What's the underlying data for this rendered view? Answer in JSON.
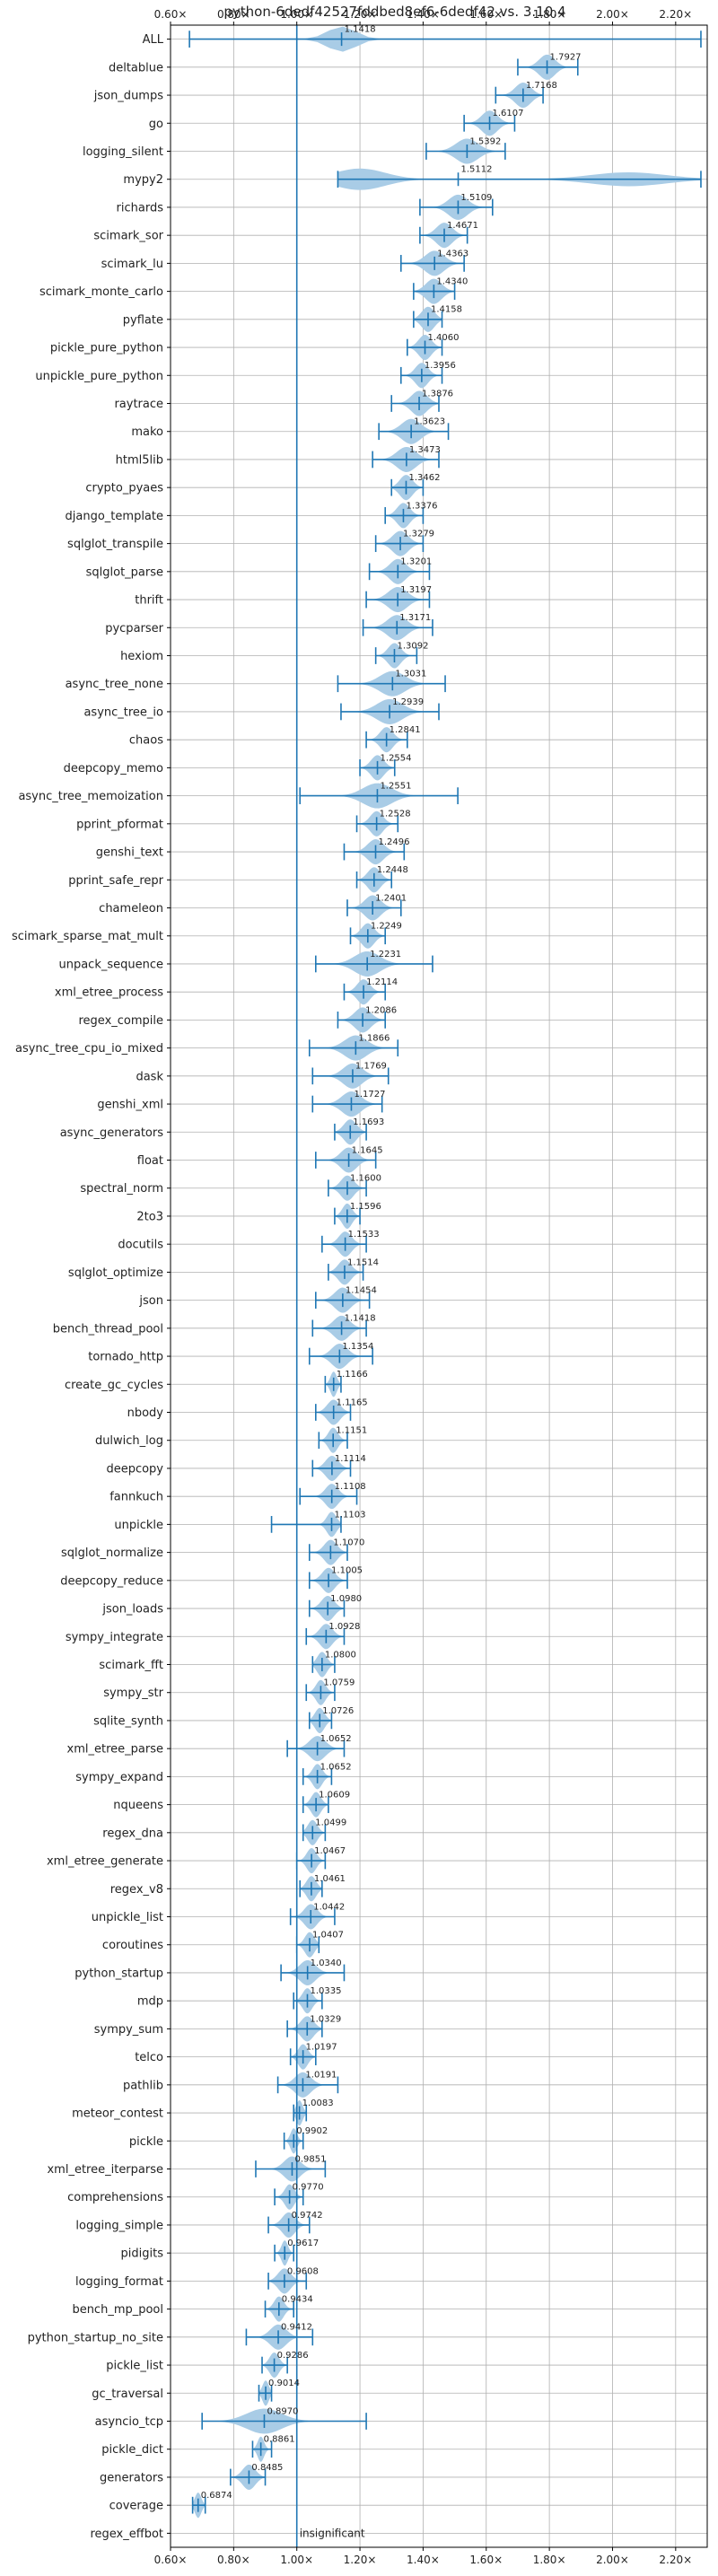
{
  "chart_data": {
    "type": "violin",
    "title": "python-6dedf42527fddbed8ef6-6dedf42 vs. 3.10.4",
    "xlabel": "",
    "ylabel": "",
    "xlim": [
      0.6,
      2.3
    ],
    "x_ticks": [
      0.6,
      0.8,
      1.0,
      1.2,
      1.4,
      1.6,
      1.8,
      2.0,
      2.2
    ],
    "x_tick_labels": [
      "0.60×",
      "0.80×",
      "1.00×",
      "1.20×",
      "1.40×",
      "1.60×",
      "1.80×",
      "2.00×",
      "2.20×"
    ],
    "reference_line": 1.0,
    "grid": true,
    "color": "#1f77b4",
    "fill_color": "#a9cce6",
    "benchmarks": [
      {
        "name": "ALL",
        "value": 1.1418,
        "label": "1.1418",
        "min": 0.66,
        "max": 2.28,
        "spread": 0.09,
        "style": "wide"
      },
      {
        "name": "deltablue",
        "value": 1.7927,
        "label": "1.7927",
        "min": 1.7,
        "max": 1.89,
        "spread": 0.05
      },
      {
        "name": "json_dumps",
        "value": 1.7168,
        "label": "1.7168",
        "min": 1.63,
        "max": 1.78,
        "spread": 0.05
      },
      {
        "name": "go",
        "value": 1.6107,
        "label": "1.6107",
        "min": 1.53,
        "max": 1.69,
        "spread": 0.05
      },
      {
        "name": "logging_silent",
        "value": 1.5392,
        "label": "1.5392",
        "min": 1.41,
        "max": 1.66,
        "spread": 0.07
      },
      {
        "name": "mypy2",
        "value": 1.5112,
        "label": "1.5112",
        "min": 1.13,
        "max": 2.28,
        "spread": 0.2,
        "style": "mypy"
      },
      {
        "name": "richards",
        "value": 1.5109,
        "label": "1.5109",
        "min": 1.39,
        "max": 1.62,
        "spread": 0.06
      },
      {
        "name": "scimark_sor",
        "value": 1.4671,
        "label": "1.4671",
        "min": 1.39,
        "max": 1.54,
        "spread": 0.05
      },
      {
        "name": "scimark_lu",
        "value": 1.4363,
        "label": "1.4363",
        "min": 1.33,
        "max": 1.53,
        "spread": 0.06
      },
      {
        "name": "scimark_monte_carlo",
        "value": 1.434,
        "label": "1.4340",
        "min": 1.37,
        "max": 1.5,
        "spread": 0.05
      },
      {
        "name": "pyflate",
        "value": 1.4158,
        "label": "1.4158",
        "min": 1.37,
        "max": 1.46,
        "spread": 0.04
      },
      {
        "name": "pickle_pure_python",
        "value": 1.406,
        "label": "1.4060",
        "min": 1.35,
        "max": 1.46,
        "spread": 0.04
      },
      {
        "name": "unpickle_pure_python",
        "value": 1.3956,
        "label": "1.3956",
        "min": 1.33,
        "max": 1.46,
        "spread": 0.04
      },
      {
        "name": "raytrace",
        "value": 1.3876,
        "label": "1.3876",
        "min": 1.3,
        "max": 1.45,
        "spread": 0.05
      },
      {
        "name": "mako",
        "value": 1.3623,
        "label": "1.3623",
        "min": 1.26,
        "max": 1.48,
        "spread": 0.06
      },
      {
        "name": "html5lib",
        "value": 1.3473,
        "label": "1.3473",
        "min": 1.24,
        "max": 1.45,
        "spread": 0.06
      },
      {
        "name": "crypto_pyaes",
        "value": 1.3462,
        "label": "1.3462",
        "min": 1.3,
        "max": 1.4,
        "spread": 0.04
      },
      {
        "name": "django_template",
        "value": 1.3376,
        "label": "1.3376",
        "min": 1.28,
        "max": 1.4,
        "spread": 0.04
      },
      {
        "name": "sqlglot_transpile",
        "value": 1.3279,
        "label": "1.3279",
        "min": 1.25,
        "max": 1.4,
        "spread": 0.05
      },
      {
        "name": "sqlglot_parse",
        "value": 1.3201,
        "label": "1.3201",
        "min": 1.23,
        "max": 1.42,
        "spread": 0.05
      },
      {
        "name": "thrift",
        "value": 1.3197,
        "label": "1.3197",
        "min": 1.22,
        "max": 1.42,
        "spread": 0.06
      },
      {
        "name": "pycparser",
        "value": 1.3171,
        "label": "1.3171",
        "min": 1.21,
        "max": 1.43,
        "spread": 0.06
      },
      {
        "name": "hexiom",
        "value": 1.3092,
        "label": "1.3092",
        "min": 1.25,
        "max": 1.38,
        "spread": 0.04
      },
      {
        "name": "async_tree_none",
        "value": 1.3031,
        "label": "1.3031",
        "min": 1.13,
        "max": 1.47,
        "spread": 0.08
      },
      {
        "name": "async_tree_io",
        "value": 1.2939,
        "label": "1.2939",
        "min": 1.14,
        "max": 1.45,
        "spread": 0.08
      },
      {
        "name": "chaos",
        "value": 1.2841,
        "label": "1.2841",
        "min": 1.22,
        "max": 1.35,
        "spread": 0.04
      },
      {
        "name": "deepcopy_memo",
        "value": 1.2554,
        "label": "1.2554",
        "min": 1.2,
        "max": 1.31,
        "spread": 0.04
      },
      {
        "name": "async_tree_memoization",
        "value": 1.2551,
        "label": "1.2551",
        "min": 1.01,
        "max": 1.51,
        "spread": 0.09
      },
      {
        "name": "pprint_pformat",
        "value": 1.2528,
        "label": "1.2528",
        "min": 1.19,
        "max": 1.32,
        "spread": 0.04
      },
      {
        "name": "genshi_text",
        "value": 1.2496,
        "label": "1.2496",
        "min": 1.15,
        "max": 1.34,
        "spread": 0.05
      },
      {
        "name": "pprint_safe_repr",
        "value": 1.2448,
        "label": "1.2448",
        "min": 1.19,
        "max": 1.3,
        "spread": 0.04
      },
      {
        "name": "chameleon",
        "value": 1.2401,
        "label": "1.2401",
        "min": 1.16,
        "max": 1.33,
        "spread": 0.05
      },
      {
        "name": "scimark_sparse_mat_mult",
        "value": 1.2249,
        "label": "1.2249",
        "min": 1.17,
        "max": 1.28,
        "spread": 0.04
      },
      {
        "name": "unpack_sequence",
        "value": 1.2231,
        "label": "1.2231",
        "min": 1.06,
        "max": 1.43,
        "spread": 0.08
      },
      {
        "name": "xml_etree_process",
        "value": 1.2114,
        "label": "1.2114",
        "min": 1.15,
        "max": 1.28,
        "spread": 0.04
      },
      {
        "name": "regex_compile",
        "value": 1.2086,
        "label": "1.2086",
        "min": 1.13,
        "max": 1.28,
        "spread": 0.05
      },
      {
        "name": "async_tree_cpu_io_mixed",
        "value": 1.1866,
        "label": "1.1866",
        "min": 1.04,
        "max": 1.32,
        "spread": 0.07
      },
      {
        "name": "dask",
        "value": 1.1769,
        "label": "1.1769",
        "min": 1.05,
        "max": 1.29,
        "spread": 0.06
      },
      {
        "name": "genshi_xml",
        "value": 1.1727,
        "label": "1.1727",
        "min": 1.05,
        "max": 1.27,
        "spread": 0.06
      },
      {
        "name": "async_generators",
        "value": 1.1693,
        "label": "1.1693",
        "min": 1.12,
        "max": 1.22,
        "spread": 0.04
      },
      {
        "name": "float",
        "value": 1.1645,
        "label": "1.1645",
        "min": 1.06,
        "max": 1.25,
        "spread": 0.05
      },
      {
        "name": "spectral_norm",
        "value": 1.16,
        "label": "1.1600",
        "min": 1.1,
        "max": 1.22,
        "spread": 0.04
      },
      {
        "name": "2to3",
        "value": 1.1596,
        "label": "1.1596",
        "min": 1.12,
        "max": 1.2,
        "spread": 0.03
      },
      {
        "name": "docutils",
        "value": 1.1533,
        "label": "1.1533",
        "min": 1.08,
        "max": 1.22,
        "spread": 0.04
      },
      {
        "name": "sqlglot_optimize",
        "value": 1.1514,
        "label": "1.1514",
        "min": 1.1,
        "max": 1.21,
        "spread": 0.04
      },
      {
        "name": "json",
        "value": 1.1454,
        "label": "1.1454",
        "min": 1.06,
        "max": 1.23,
        "spread": 0.05
      },
      {
        "name": "bench_thread_pool",
        "value": 1.1418,
        "label": "1.1418",
        "min": 1.05,
        "max": 1.22,
        "spread": 0.05
      },
      {
        "name": "tornado_http",
        "value": 1.1354,
        "label": "1.1354",
        "min": 1.04,
        "max": 1.24,
        "spread": 0.05
      },
      {
        "name": "create_gc_cycles",
        "value": 1.1166,
        "label": "1.1166",
        "min": 1.09,
        "max": 1.14,
        "spread": 0.02
      },
      {
        "name": "nbody",
        "value": 1.1165,
        "label": "1.1165",
        "min": 1.06,
        "max": 1.17,
        "spread": 0.04
      },
      {
        "name": "dulwich_log",
        "value": 1.1151,
        "label": "1.1151",
        "min": 1.07,
        "max": 1.16,
        "spread": 0.03
      },
      {
        "name": "deepcopy",
        "value": 1.1114,
        "label": "1.1114",
        "min": 1.05,
        "max": 1.17,
        "spread": 0.04
      },
      {
        "name": "fannkuch",
        "value": 1.1108,
        "label": "1.1108",
        "min": 1.01,
        "max": 1.19,
        "spread": 0.04
      },
      {
        "name": "unpickle",
        "value": 1.1103,
        "label": "1.1103",
        "min": 0.92,
        "max": 1.14,
        "spread": 0.03,
        "style": "unpickle"
      },
      {
        "name": "sqlglot_normalize",
        "value": 1.107,
        "label": "1.1070",
        "min": 1.04,
        "max": 1.16,
        "spread": 0.04
      },
      {
        "name": "deepcopy_reduce",
        "value": 1.1005,
        "label": "1.1005",
        "min": 1.04,
        "max": 1.16,
        "spread": 0.04
      },
      {
        "name": "json_loads",
        "value": 1.098,
        "label": "1.0980",
        "min": 1.04,
        "max": 1.15,
        "spread": 0.04
      },
      {
        "name": "sympy_integrate",
        "value": 1.0928,
        "label": "1.0928",
        "min": 1.03,
        "max": 1.15,
        "spread": 0.04
      },
      {
        "name": "scimark_fft",
        "value": 1.08,
        "label": "1.0800",
        "min": 1.05,
        "max": 1.12,
        "spread": 0.03
      },
      {
        "name": "sympy_str",
        "value": 1.0759,
        "label": "1.0759",
        "min": 1.03,
        "max": 1.12,
        "spread": 0.03
      },
      {
        "name": "sqlite_synth",
        "value": 1.0726,
        "label": "1.0726",
        "min": 1.04,
        "max": 1.11,
        "spread": 0.03
      },
      {
        "name": "xml_etree_parse",
        "value": 1.0652,
        "label": "1.0652",
        "min": 0.97,
        "max": 1.15,
        "spread": 0.05
      },
      {
        "name": "sympy_expand",
        "value": 1.0652,
        "label": "1.0652",
        "min": 1.02,
        "max": 1.11,
        "spread": 0.03
      },
      {
        "name": "nqueens",
        "value": 1.0609,
        "label": "1.0609",
        "min": 1.02,
        "max": 1.1,
        "spread": 0.03
      },
      {
        "name": "regex_dna",
        "value": 1.0499,
        "label": "1.0499",
        "min": 1.02,
        "max": 1.09,
        "spread": 0.03
      },
      {
        "name": "xml_etree_generate",
        "value": 1.0467,
        "label": "1.0467",
        "min": 1.0,
        "max": 1.09,
        "spread": 0.03
      },
      {
        "name": "regex_v8",
        "value": 1.0461,
        "label": "1.0461",
        "min": 1.01,
        "max": 1.08,
        "spread": 0.03
      },
      {
        "name": "unpickle_list",
        "value": 1.0442,
        "label": "1.0442",
        "min": 0.98,
        "max": 1.12,
        "spread": 0.04
      },
      {
        "name": "coroutines",
        "value": 1.0407,
        "label": "1.0407",
        "min": 1.0,
        "max": 1.07,
        "spread": 0.03
      },
      {
        "name": "python_startup",
        "value": 1.034,
        "label": "1.0340",
        "min": 0.95,
        "max": 1.15,
        "spread": 0.05
      },
      {
        "name": "mdp",
        "value": 1.0335,
        "label": "1.0335",
        "min": 0.99,
        "max": 1.08,
        "spread": 0.03
      },
      {
        "name": "sympy_sum",
        "value": 1.0329,
        "label": "1.0329",
        "min": 0.97,
        "max": 1.08,
        "spread": 0.04
      },
      {
        "name": "telco",
        "value": 1.0197,
        "label": "1.0197",
        "min": 0.98,
        "max": 1.06,
        "spread": 0.03
      },
      {
        "name": "pathlib",
        "value": 1.0191,
        "label": "1.0191",
        "min": 0.94,
        "max": 1.13,
        "spread": 0.05
      },
      {
        "name": "meteor_contest",
        "value": 1.0083,
        "label": "1.0083",
        "min": 0.99,
        "max": 1.03,
        "spread": 0.02
      },
      {
        "name": "pickle",
        "value": 0.9902,
        "label": "0.9902",
        "min": 0.96,
        "max": 1.02,
        "spread": 0.02
      },
      {
        "name": "xml_etree_iterparse",
        "value": 0.9851,
        "label": "0.9851",
        "min": 0.87,
        "max": 1.09,
        "spread": 0.05
      },
      {
        "name": "comprehensions",
        "value": 0.977,
        "label": "0.9770",
        "min": 0.93,
        "max": 1.02,
        "spread": 0.03
      },
      {
        "name": "logging_simple",
        "value": 0.9742,
        "label": "0.9742",
        "min": 0.91,
        "max": 1.04,
        "spread": 0.04
      },
      {
        "name": "pidigits",
        "value": 0.9617,
        "label": "0.9617",
        "min": 0.93,
        "max": 0.99,
        "spread": 0.02
      },
      {
        "name": "logging_format",
        "value": 0.9608,
        "label": "0.9608",
        "min": 0.91,
        "max": 1.03,
        "spread": 0.04
      },
      {
        "name": "bench_mp_pool",
        "value": 0.9434,
        "label": "0.9434",
        "min": 0.9,
        "max": 0.99,
        "spread": 0.03
      },
      {
        "name": "python_startup_no_site",
        "value": 0.9412,
        "label": "0.9412",
        "min": 0.84,
        "max": 1.05,
        "spread": 0.05
      },
      {
        "name": "pickle_list",
        "value": 0.9286,
        "label": "0.9286",
        "min": 0.89,
        "max": 0.97,
        "spread": 0.03
      },
      {
        "name": "gc_traversal",
        "value": 0.9014,
        "label": "0.9014",
        "min": 0.88,
        "max": 0.92,
        "spread": 0.02
      },
      {
        "name": "asyncio_tcp",
        "value": 0.897,
        "label": "0.8970",
        "min": 0.7,
        "max": 1.22,
        "spread": 0.11,
        "style": "wide"
      },
      {
        "name": "pickle_dict",
        "value": 0.8861,
        "label": "0.8861",
        "min": 0.86,
        "max": 0.92,
        "spread": 0.02
      },
      {
        "name": "generators",
        "value": 0.8485,
        "label": "0.8485",
        "min": 0.79,
        "max": 0.9,
        "spread": 0.04
      },
      {
        "name": "coverage",
        "value": 0.6874,
        "label": "0.6874",
        "min": 0.67,
        "max": 0.71,
        "spread": 0.02
      },
      {
        "name": "regex_effbot",
        "value": null,
        "label": "insignificant",
        "min": null,
        "max": null,
        "spread": 0
      }
    ]
  }
}
